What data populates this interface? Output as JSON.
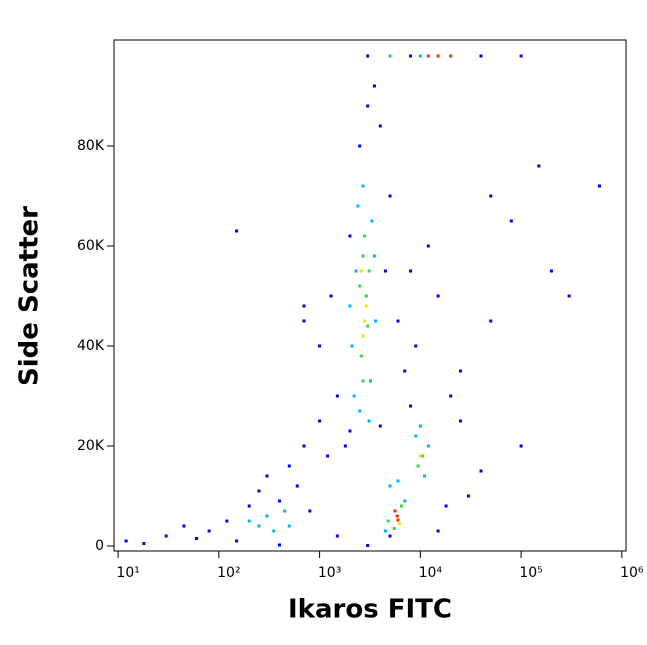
{
  "chart_data": {
    "type": "scatter",
    "xlabel": "Ikaros FITC",
    "ylabel": "Side Scatter",
    "xscale": "log",
    "xlim": [
      9.1,
      1100000
    ],
    "ylim": [
      -1000,
      101200
    ],
    "xticks": [
      {
        "value": 10,
        "label": "10¹"
      },
      {
        "value": 100,
        "label": "10²"
      },
      {
        "value": 1000,
        "label": "10³"
      },
      {
        "value": 10000,
        "label": "10⁴"
      },
      {
        "value": 100000,
        "label": "10⁵"
      },
      {
        "value": 1000000,
        "label": "10⁶"
      }
    ],
    "yticks": [
      0,
      {
        "value": 20000,
        "label": "20K"
      },
      {
        "value": 40000,
        "label": "40K"
      },
      {
        "value": 60000,
        "label": "60K"
      },
      {
        "value": 80000,
        "label": "80K"
      }
    ],
    "series": [
      {
        "color": "#0000ee",
        "x": [
          12,
          18,
          30,
          45,
          60,
          80,
          120,
          150,
          200,
          250,
          300,
          400,
          500,
          600,
          700,
          800,
          1000,
          1200,
          1500,
          1000,
          700,
          1300,
          2000,
          1800,
          2500,
          3000,
          3500,
          4000,
          5000,
          4500,
          6000,
          7000,
          8000,
          9000,
          12000,
          15000,
          20000,
          25000,
          30000,
          40000,
          50000,
          80000,
          100000,
          150000,
          200000,
          300000,
          600000,
          25000,
          18000,
          3000,
          1500,
          400,
          5000,
          15000,
          50000,
          150,
          8000,
          2000,
          4000,
          700,
          3000,
          8000,
          40000,
          100000
        ],
        "y": [
          1000,
          500,
          2000,
          4000,
          1500,
          3000,
          5000,
          1000,
          8000,
          11000,
          14000,
          9000,
          16000,
          12000,
          20000,
          7000,
          25000,
          18000,
          30000,
          40000,
          45000,
          50000,
          62000,
          20000,
          80000,
          88000,
          92000,
          84000,
          70000,
          55000,
          45000,
          35000,
          28000,
          40000,
          60000,
          50000,
          30000,
          25000,
          10000,
          15000,
          70000,
          65000,
          20000,
          76000,
          55000,
          50000,
          72000,
          35000,
          8000,
          100,
          2000,
          200,
          2000,
          3000,
          45000,
          63000,
          55000,
          23000,
          24000,
          48000,
          98000,
          98000,
          98000,
          98000
        ]
      },
      {
        "color": "#00b4ff",
        "x": [
          2200,
          2500,
          3200,
          2100,
          3600,
          2300,
          3300,
          2700,
          2400,
          3500,
          2000,
          3100,
          250,
          300,
          350,
          200,
          450,
          500,
          9000,
          11000,
          12000,
          10000,
          5000,
          4500,
          7000,
          6000,
          5000,
          10000
        ],
        "y": [
          30000,
          27000,
          33000,
          40000,
          45000,
          55000,
          65000,
          72000,
          68000,
          58000,
          48000,
          25000,
          4000,
          6000,
          3000,
          5000,
          7000,
          4000,
          22000,
          14000,
          20000,
          24000,
          12000,
          3000,
          9000,
          13000,
          98000,
          98000
        ]
      },
      {
        "color": "#3ad64a",
        "x": [
          2600,
          2900,
          2700,
          3000,
          2500,
          2800,
          2700,
          3100,
          10500,
          9500,
          5500,
          6500,
          4800
        ],
        "y": [
          38000,
          50000,
          58000,
          44000,
          52000,
          62000,
          33000,
          55000,
          18000,
          16000,
          3500,
          8000,
          5000
        ]
      },
      {
        "color": "#e8e800",
        "x": [
          2800,
          2700,
          2900,
          2600,
          5800,
          6200,
          10000
        ],
        "y": [
          45000,
          42000,
          48000,
          55000,
          6000,
          4500,
          18000
        ]
      },
      {
        "color": "#ff3000",
        "x": [
          5900,
          6000,
          5600,
          15000,
          12000,
          20000
        ],
        "y": [
          6000,
          5200,
          7000,
          98000,
          98000,
          98000
        ]
      }
    ]
  }
}
